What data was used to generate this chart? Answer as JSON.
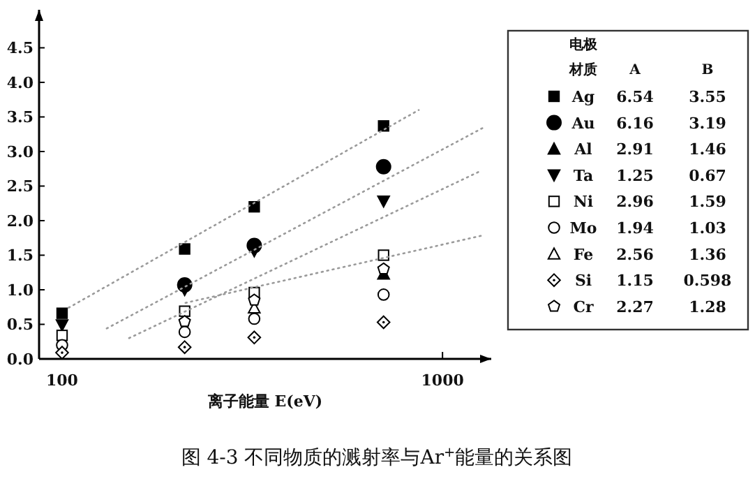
{
  "chart_data": {
    "type": "scatter",
    "title": "图 4-3 不同物质的溅射率与Ar$^{+}$能量的关系图",
    "xlabel": "离子能量 E(eV)",
    "legend_title": "电极材质",
    "log": "x",
    "xlim": [
      87,
      1343
    ],
    "xticks": [
      100,
      1000
    ],
    "ylim": [
      0,
      5.05
    ],
    "yticks": [
      {
        "value": 0,
        "label": "0.0"
      },
      {
        "value": 0.5,
        "label": "0.5"
      },
      {
        "value": 1,
        "label": "1.0"
      },
      {
        "value": 1.5,
        "label": "1.5"
      },
      {
        "value": 2,
        "label": "2.0"
      },
      {
        "value": 2.5,
        "label": "2.5"
      },
      {
        "value": 3,
        "label": "3.0"
      },
      {
        "value": 3.5,
        "label": "3.5"
      },
      {
        "value": 4,
        "label": "4.0"
      },
      {
        "value": 4.5,
        "label": "4.5"
      }
    ],
    "grid": false,
    "legend": "right",
    "x": [
      100,
      210,
      320,
      700
    ],
    "series": [
      {
        "name": "Ag",
        "color": "#000000",
        "marker": "square",
        "values": [
          0.66,
          1.59,
          2.2,
          3.37
        ]
      },
      {
        "name": "Au",
        "color": "#000000",
        "marker": "circle",
        "values": [
          null,
          1.07,
          1.64,
          2.78
        ]
      },
      {
        "name": "Al",
        "color": "#000000",
        "marker": "triangle",
        "values": [
          null,
          null,
          null,
          1.23
        ]
      },
      {
        "name": "Ta",
        "color": "#000000",
        "marker": "triangle-down",
        "values": [
          0.49,
          1.0,
          1.56,
          2.28
        ]
      },
      {
        "name": "Ni",
        "color": "#000000",
        "marker": "square-open",
        "values": [
          0.34,
          0.69,
          0.96,
          1.5
        ]
      },
      {
        "name": "Mo",
        "color": "#000000",
        "marker": "circle-open",
        "values": [
          0.2,
          0.39,
          0.58,
          0.93
        ]
      },
      {
        "name": "Fe",
        "color": "#000000",
        "marker": "triangle-open",
        "values": [
          null,
          null,
          0.74,
          null
        ]
      },
      {
        "name": "Si",
        "color": "#000000",
        "marker": "diamond-dot",
        "values": [
          0.09,
          0.17,
          0.31,
          0.53
        ]
      },
      {
        "name": "Cr",
        "color": "#000000",
        "values": [
          null,
          0.54,
          0.85,
          1.3
        ]
      },
      {
        "type": "line",
        "color": "#9a9a9a",
        "line_style": "dotted",
        "x": [
          104,
          866
        ],
        "values": [
          0.74,
          3.6
        ]
      },
      {
        "type": "line",
        "color": "#9a9a9a",
        "line_style": "dotted",
        "x": [
          131,
          1285
        ],
        "values": [
          0.44,
          3.35
        ]
      },
      {
        "type": "line",
        "color": "#9a9a9a",
        "line_style": "dotted",
        "x": [
          150,
          1250
        ],
        "values": [
          0.3,
          2.71
        ]
      },
      {
        "type": "line",
        "color": "#9a9a9a",
        "line_style": "dotted",
        "x": [
          211,
          1285
        ],
        "values": [
          0.81,
          1.79
        ]
      }
    ],
    "annotations": [
      "A",
      "B",
      "6.54",
      "3.55",
      "6.16",
      "3.19",
      "2.91",
      "1.46",
      "1.25",
      "0.67",
      "2.96",
      "1.59",
      "1.94",
      "1.03",
      "2.56",
      "1.36",
      "1.15",
      "0.598",
      "2.27",
      "1.28"
    ]
  }
}
